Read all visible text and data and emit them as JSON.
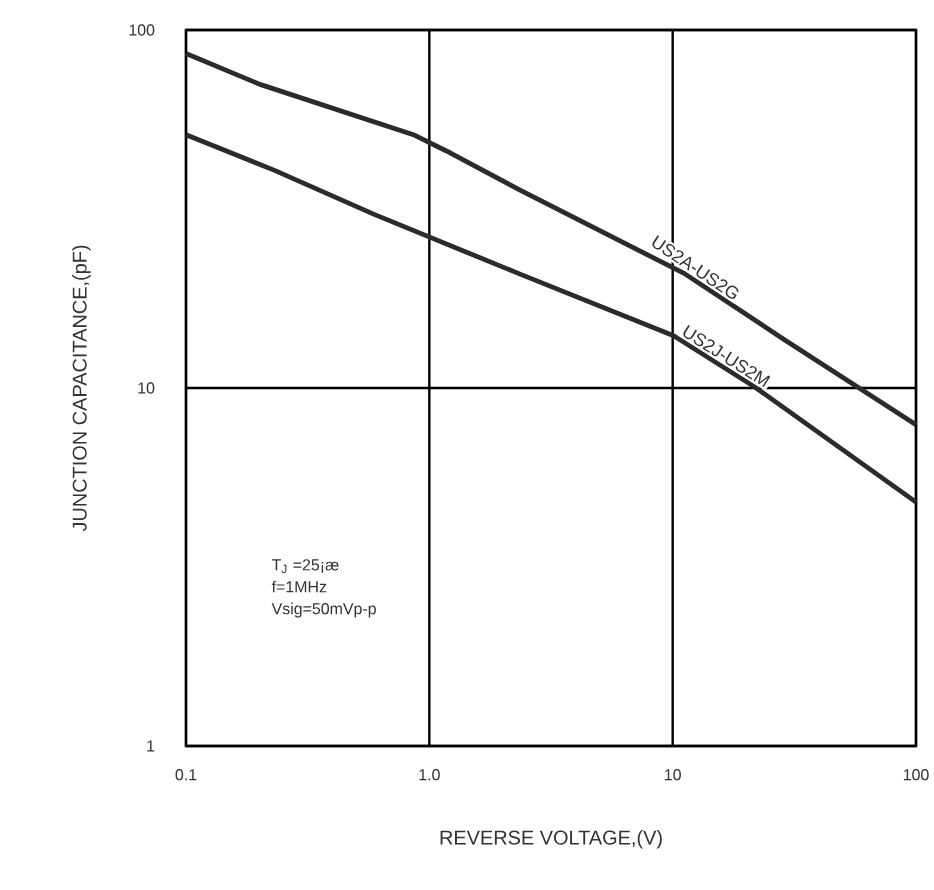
{
  "chart_data": {
    "type": "line",
    "xlabel": "REVERSE VOLTAGE,(V)",
    "ylabel": "JUNCTION CAPACITANCE,(pF)",
    "log": "xy",
    "grid": true,
    "marker": "none",
    "line_style": "solid",
    "xlim": [
      0.1,
      100
    ],
    "ylim": [
      1,
      100
    ],
    "xticks": [
      {
        "value": 0.1,
        "label": "0.1"
      },
      {
        "value": 1,
        "label": "1.0"
      },
      10,
      100
    ],
    "yticks": [
      1,
      10,
      100
    ],
    "series": [
      {
        "name": "US2A-US2G",
        "color": "#2b2b2b",
        "x": [
          0.1,
          0.2,
          0.86,
          1.17,
          2.36,
          11.3,
          29,
          100
        ],
        "values": [
          86,
          70.6,
          51,
          46,
          35.7,
          20.8,
          13.6,
          7.9
        ]
      },
      {
        "name": "US2J-US2M",
        "color": "#2b2b2b",
        "x": [
          0.1,
          0.23,
          0.59,
          2.36,
          10.1,
          21.6,
          100
        ],
        "values": [
          51,
          40.6,
          30.6,
          20.8,
          14,
          10.1,
          4.8
        ]
      }
    ],
    "annotations": [
      "T$_{J}$ =25¡æ",
      "f=1MHz",
      "Vsig=50mVp-p"
    ]
  }
}
